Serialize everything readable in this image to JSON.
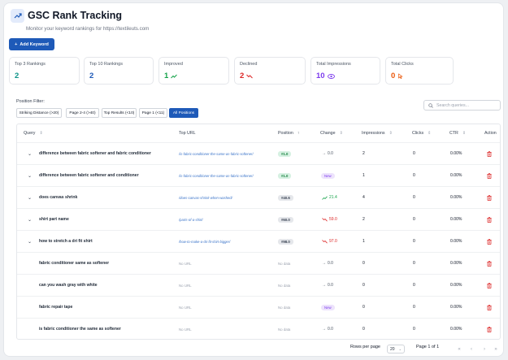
{
  "header": {
    "title": "GSC Rank Tracking",
    "subtitle": "Monitor your keyword rankings for https://textileuts.com",
    "icon": "trend-up-icon",
    "accent": "#1e5ab8"
  },
  "add_button": "Add Keyword",
  "stats": [
    {
      "label": "Top 3 Rankings",
      "value": "2",
      "color": "#0d9488",
      "icon": ""
    },
    {
      "label": "Top 10 Rankings",
      "value": "2",
      "color": "#1e5ab8",
      "icon": ""
    },
    {
      "label": "Improved",
      "value": "1",
      "color": "#16a34a",
      "icon": "trend-up-icon"
    },
    {
      "label": "Declined",
      "value": "2",
      "color": "#dc2626",
      "icon": "trend-down-icon"
    },
    {
      "label": "Total Impressions",
      "value": "10",
      "color": "#7c3aed",
      "icon": "eye-icon"
    },
    {
      "label": "Total Clicks",
      "value": "0",
      "color": "#ea580c",
      "icon": "click-icon"
    }
  ],
  "filter": {
    "label": "Position Filter:",
    "chips": [
      "Striking Distance (>20)",
      "Page 2-4 (>40)",
      "Top Results (<10)",
      "Page 1 (<11)",
      "All Positions"
    ],
    "active": 4
  },
  "search": {
    "placeholder": "Search queries..."
  },
  "columns": [
    "Query",
    "Top URL",
    "Position",
    "Change",
    "Impressions",
    "Clicks",
    "CTR",
    "Action"
  ],
  "rows": [
    {
      "expand": true,
      "query": "difference between fabric softener and fabric conditioner",
      "url": "/is-fabric-conditioner-the-same-as-fabric-softener/",
      "position": "#1.0",
      "pos_style": "green",
      "change": "0.0",
      "change_type": "neutral",
      "impressions": "2",
      "clicks": "0",
      "ctr": "0.00%"
    },
    {
      "expand": true,
      "query": "difference between fabric softener and conditioner",
      "url": "/is-fabric-conditioner-the-same-as-fabric-softener/",
      "position": "#1.0",
      "pos_style": "green",
      "change": "New",
      "change_type": "new",
      "impressions": "1",
      "clicks": "0",
      "ctr": "0.00%"
    },
    {
      "expand": true,
      "query": "does canvas shrink",
      "url": "/does-canvas-shrink-when-washed/",
      "position": "#40.6",
      "pos_style": "gray",
      "change": "21.4",
      "change_type": "up",
      "impressions": "4",
      "clicks": "0",
      "ctr": "0.00%"
    },
    {
      "expand": true,
      "query": "shirt part name",
      "url": "/parts-of-a-shirt/",
      "position": "#60.0",
      "pos_style": "gray",
      "change": "59.0",
      "change_type": "down",
      "impressions": "2",
      "clicks": "0",
      "ctr": "0.00%"
    },
    {
      "expand": true,
      "query": "how to stretch a dri fit shirt",
      "url": "/how-to-make-a-dri-fit-shirt-bigger/",
      "position": "#98.0",
      "pos_style": "gray",
      "change": "97.0",
      "change_type": "down",
      "impressions": "1",
      "clicks": "0",
      "ctr": "0.00%"
    },
    {
      "expand": false,
      "query": "fabric conditioner same as softener",
      "url": "No URL",
      "position": "No data",
      "pos_style": "none",
      "change": "0.0",
      "change_type": "neutral",
      "impressions": "0",
      "clicks": "0",
      "ctr": "0.00%"
    },
    {
      "expand": false,
      "query": "can you wash gray with white",
      "url": "No URL",
      "position": "No data",
      "pos_style": "none",
      "change": "0.0",
      "change_type": "neutral",
      "impressions": "0",
      "clicks": "0",
      "ctr": "0.00%"
    },
    {
      "expand": false,
      "query": "fabric repair tape",
      "url": "No URL",
      "position": "No data",
      "pos_style": "none",
      "change": "New",
      "change_type": "new",
      "impressions": "0",
      "clicks": "0",
      "ctr": "0.00%"
    },
    {
      "expand": false,
      "query": "is fabric conditioner the same as softener",
      "url": "No URL",
      "position": "No data",
      "pos_style": "none",
      "change": "0.0",
      "change_type": "neutral",
      "impressions": "0",
      "clicks": "0",
      "ctr": "0.00%"
    }
  ],
  "pagination": {
    "rows_per_page_label": "Rows per page",
    "rows_per_page": "20",
    "page_info": "Page 1 of 1"
  }
}
